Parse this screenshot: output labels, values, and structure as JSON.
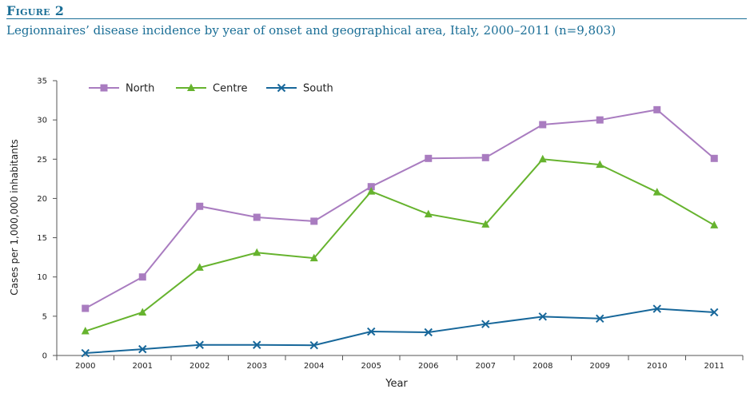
{
  "figure": {
    "label": "Figure 2",
    "title": "Legionnaires’ disease incidence by year of onset and geographical area, Italy, 2000–2011 (n=9,803)"
  },
  "chart_data": {
    "type": "line",
    "xlabel": "Year",
    "ylabel": "Cases per 1,000,000 inhabitants",
    "ylim": [
      0,
      35
    ],
    "yticks": [
      "0",
      "5",
      "10",
      "15",
      "20",
      "25",
      "30",
      "35"
    ],
    "categories": [
      "2000",
      "2001",
      "2002",
      "2003",
      "2004",
      "2005",
      "2006",
      "2007",
      "2008",
      "2009",
      "2010",
      "2011"
    ],
    "legend_position": "top-left",
    "grid": false,
    "series": [
      {
        "name": "North",
        "color": "#a97cc0",
        "marker": "square",
        "values": [
          6.0,
          10.0,
          19.0,
          17.6,
          17.1,
          21.5,
          25.1,
          25.2,
          29.4,
          30.0,
          31.3,
          25.1
        ]
      },
      {
        "name": "Centre",
        "color": "#66b32e",
        "marker": "triangle",
        "values": [
          3.1,
          5.5,
          11.2,
          13.1,
          12.4,
          20.9,
          18.0,
          16.7,
          25.0,
          24.3,
          20.8,
          16.6
        ]
      },
      {
        "name": "South",
        "color": "#17679a",
        "marker": "x",
        "values": [
          0.3,
          0.8,
          1.35,
          1.35,
          1.3,
          3.05,
          2.95,
          4.0,
          4.95,
          4.7,
          5.95,
          5.5
        ]
      }
    ]
  }
}
